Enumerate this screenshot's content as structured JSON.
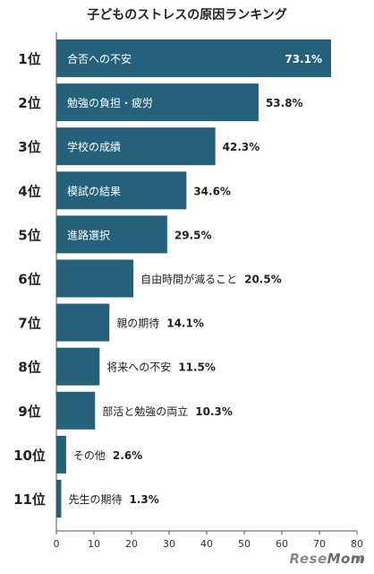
{
  "chart_data": {
    "type": "bar",
    "orientation": "horizontal",
    "title": "子どものストレスの原因ランキング",
    "ranks": [
      "1位",
      "2位",
      "3位",
      "4位",
      "5位",
      "6位",
      "7位",
      "8位",
      "9位",
      "10位",
      "11位"
    ],
    "categories": [
      "合否への不安",
      "勉強の負担・疲労",
      "学校の成績",
      "模試の結果",
      "進路選択",
      "自由時間が減ること",
      "親の期待",
      "将来への不安",
      "部活と勉強の両立",
      "その他",
      "先生の期待"
    ],
    "values": [
      73.1,
      53.8,
      42.3,
      34.6,
      29.5,
      20.5,
      14.1,
      11.5,
      10.3,
      2.6,
      1.3
    ],
    "value_labels": [
      "73.1%",
      "53.8%",
      "42.3%",
      "34.6%",
      "29.5%",
      "20.5%",
      "14.1%",
      "11.5%",
      "10.3%",
      "2.6%",
      "1.3%"
    ],
    "xlim": [
      0,
      80
    ],
    "xticks": [
      "0",
      "10",
      "20",
      "30",
      "40",
      "50",
      "60",
      "70",
      "80"
    ],
    "xunit": "(%)",
    "grid": false,
    "colors": {
      "bar": "#25617a",
      "inside_text": "#ffffff",
      "outside_text": "#222222",
      "axis": "#555555"
    }
  },
  "watermark": {
    "part1": "Rese",
    "part2": "Mom"
  }
}
